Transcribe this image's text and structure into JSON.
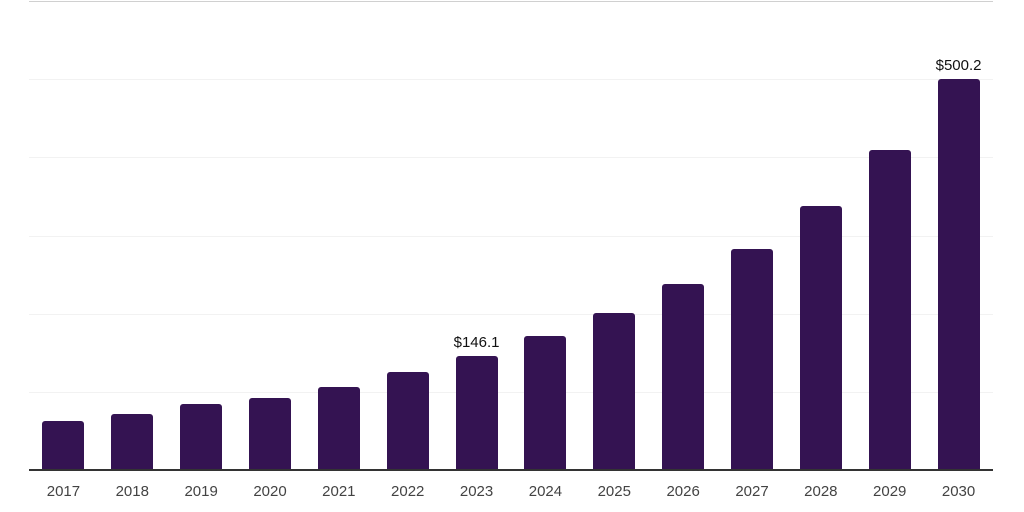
{
  "chart_data": {
    "type": "bar",
    "title": "",
    "xlabel": "",
    "ylabel": "",
    "categories": [
      "2017",
      "2018",
      "2019",
      "2020",
      "2021",
      "2022",
      "2023",
      "2024",
      "2025",
      "2026",
      "2027",
      "2028",
      "2029",
      "2030"
    ],
    "values": [
      63.0,
      72.1,
      84.8,
      92.4,
      106.6,
      125.0,
      146.1,
      171.4,
      201.2,
      237.9,
      282.3,
      337.7,
      410.0,
      500.2
    ],
    "point_labels": {
      "2023": "$146.1",
      "2030": "$500.2"
    },
    "ylim": [
      0,
      600
    ],
    "ytick_interval": 100,
    "ytick_labels_visible": false,
    "grid": "horizontal",
    "legend": "none"
  },
  "colors": {
    "bar": "#341352",
    "axis_line": "#333333",
    "gridline": "#f2f2f2",
    "top_gridline": "#d0d0d0",
    "tick_label": "#434343",
    "data_label": "#111111",
    "background": "#ffffff"
  }
}
